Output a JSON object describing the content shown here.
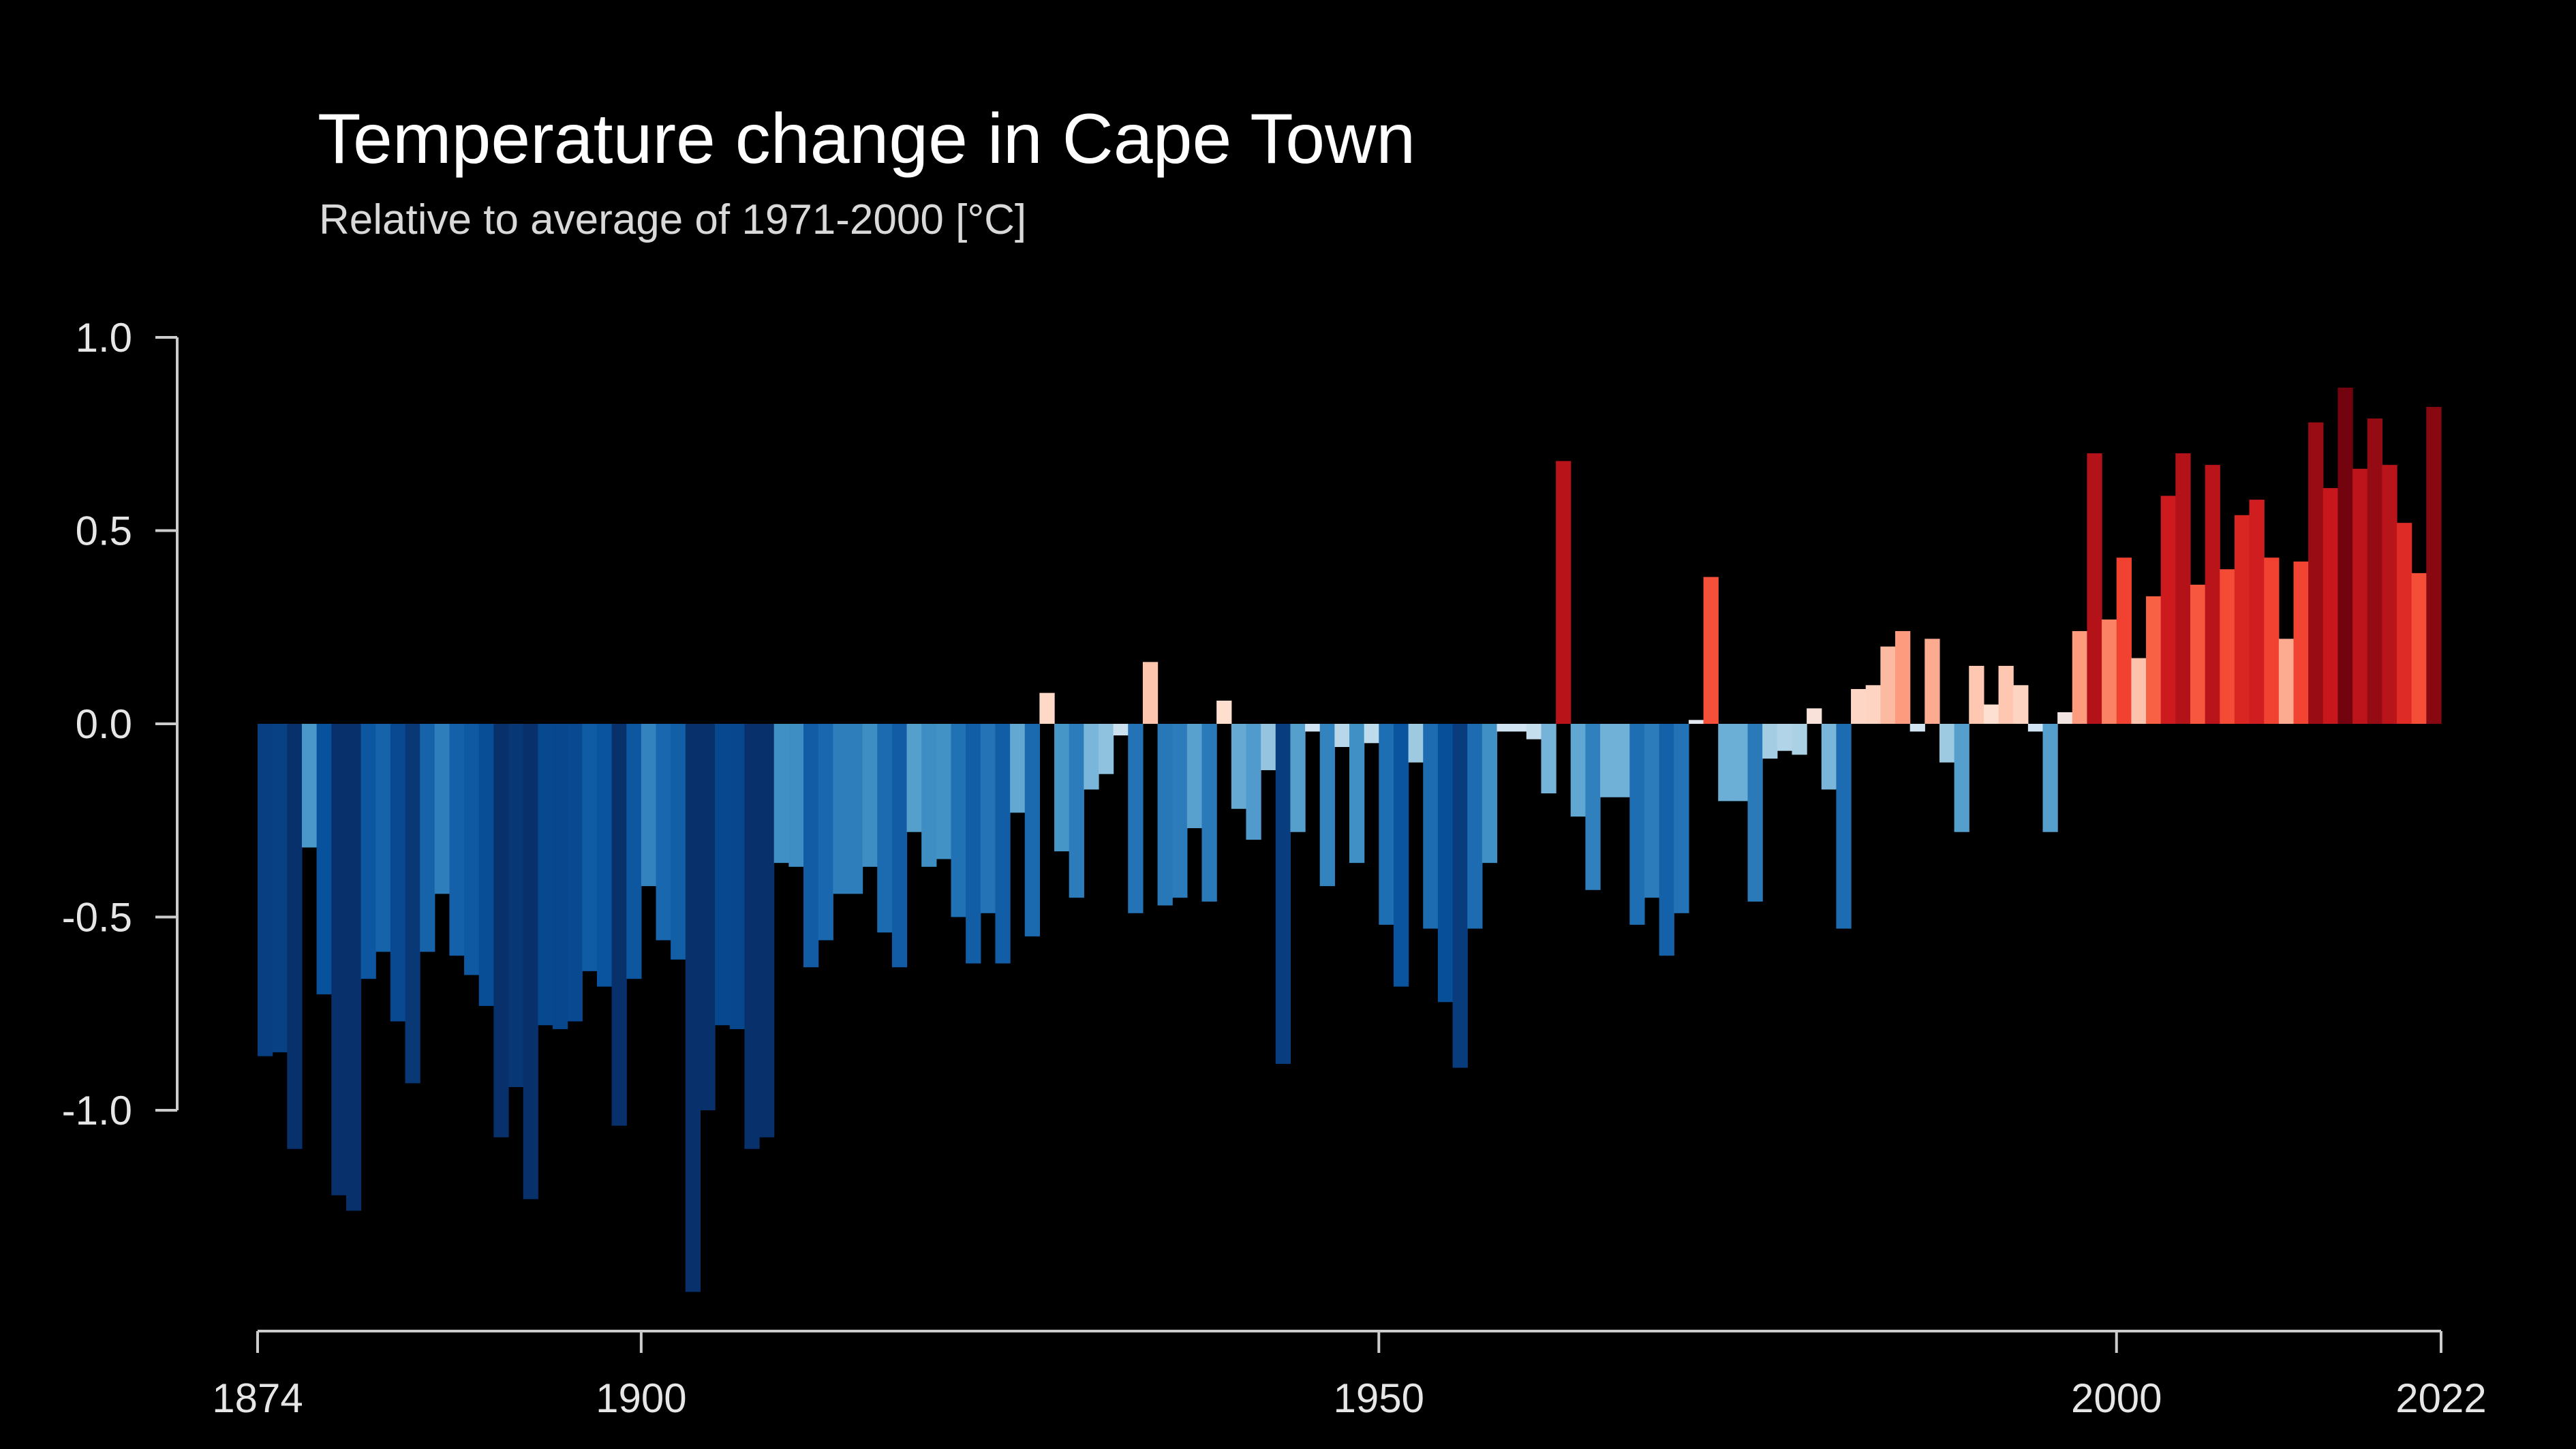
{
  "chart_data": {
    "type": "bar",
    "title": "Temperature change in Cape Town",
    "subtitle": "Relative to average of 1971-2000  [°C]",
    "x_start": 1874,
    "x_end": 2022,
    "ylim": [
      -1.48,
      1.0
    ],
    "y_ticks": [
      {
        "value": 1.0,
        "label": "1.0"
      },
      {
        "value": 0.5,
        "label": "0.5"
      },
      {
        "value": 0.0,
        "label": "0.0"
      },
      {
        "value": -0.5,
        "label": "-0.5"
      },
      {
        "value": -1.0,
        "label": "-1.0"
      }
    ],
    "x_ticks": [
      {
        "value": 1874,
        "label": "1874"
      },
      {
        "value": 1900,
        "label": "1900"
      },
      {
        "value": 1950,
        "label": "1950"
      },
      {
        "value": 2000,
        "label": "2000"
      },
      {
        "value": 2022,
        "label": "2022"
      }
    ],
    "values": [
      -0.86,
      -0.85,
      -1.1,
      -0.32,
      -0.7,
      -1.22,
      -1.26,
      -0.66,
      -0.59,
      -0.77,
      -0.93,
      -0.59,
      -0.44,
      -0.6,
      -0.65,
      -0.73,
      -1.07,
      -0.94,
      -1.23,
      -0.78,
      -0.79,
      -0.77,
      -0.64,
      -0.68,
      -1.04,
      -0.66,
      -0.42,
      -0.56,
      -0.61,
      -1.47,
      -1.0,
      -0.78,
      -0.79,
      -1.1,
      -1.07,
      -0.36,
      -0.37,
      -0.63,
      -0.56,
      -0.44,
      -0.44,
      -0.37,
      -0.54,
      -0.63,
      -0.28,
      -0.37,
      -0.35,
      -0.5,
      -0.62,
      -0.49,
      -0.62,
      -0.23,
      -0.55,
      0.08,
      -0.33,
      -0.45,
      -0.17,
      -0.13,
      -0.03,
      -0.49,
      0.16,
      -0.47,
      -0.45,
      -0.27,
      -0.46,
      0.06,
      -0.22,
      -0.3,
      -0.12,
      -0.88,
      -0.28,
      -0.02,
      -0.42,
      -0.06,
      -0.36,
      -0.05,
      -0.52,
      -0.68,
      -0.1,
      -0.53,
      -0.72,
      -0.89,
      -0.53,
      -0.36,
      -0.02,
      -0.02,
      -0.04,
      -0.18,
      0.68,
      -0.24,
      -0.43,
      -0.19,
      -0.19,
      -0.52,
      -0.45,
      -0.6,
      -0.49,
      0.01,
      0.38,
      -0.2,
      -0.2,
      -0.46,
      -0.09,
      -0.07,
      -0.08,
      0.04,
      -0.17,
      -0.53,
      0.09,
      0.1,
      0.2,
      0.24,
      -0.02,
      0.22,
      -0.1,
      -0.28,
      0.15,
      0.05,
      0.15,
      0.1,
      -0.02,
      -0.28,
      0.03,
      0.24,
      0.7,
      0.27,
      0.43,
      0.17,
      0.33,
      0.59,
      0.7,
      0.36,
      0.67,
      0.4,
      0.54,
      0.58,
      0.43,
      0.22,
      0.42,
      0.78,
      0.61,
      0.87,
      0.66,
      0.79,
      0.67,
      0.52,
      0.39,
      0.82
    ]
  }
}
